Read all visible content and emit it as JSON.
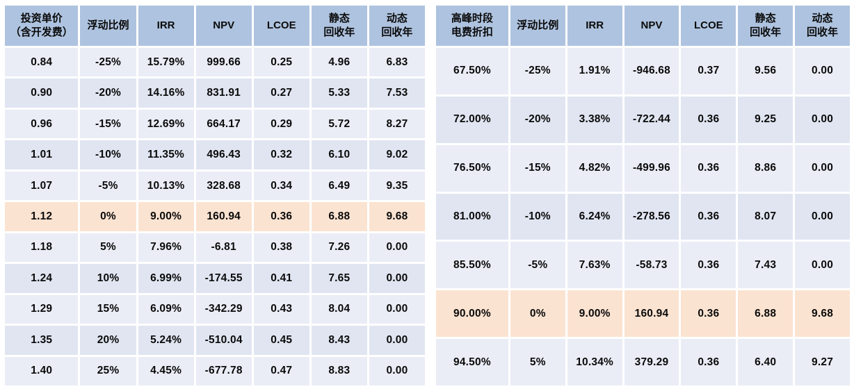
{
  "colors": {
    "header_bg": "#aec3df",
    "row_light": "#eaedf6",
    "row_dark": "#e0e5f1",
    "row_highlight": "#fbe3d1",
    "text": "#0a0a0a",
    "page_bg": "#ffffff"
  },
  "tables": [
    {
      "name": "investment-unit-price-sensitivity-table",
      "headers": [
        "投资单价\n（含开发费）",
        "浮动比例",
        "IRR",
        "NPV",
        "LCOE",
        "静态\n回收年",
        "动态\n回收年"
      ],
      "highlight_row": 5,
      "rows": [
        [
          "0.84",
          "-25%",
          "15.79%",
          "999.66",
          "0.25",
          "4.96",
          "6.83"
        ],
        [
          "0.90",
          "-20%",
          "14.16%",
          "831.91",
          "0.27",
          "5.33",
          "7.53"
        ],
        [
          "0.96",
          "-15%",
          "12.69%",
          "664.17",
          "0.29",
          "5.72",
          "8.27"
        ],
        [
          "1.01",
          "-10%",
          "11.35%",
          "496.43",
          "0.32",
          "6.10",
          "9.02"
        ],
        [
          "1.07",
          "-5%",
          "10.13%",
          "328.68",
          "0.34",
          "6.49",
          "9.35"
        ],
        [
          "1.12",
          "0%",
          "9.00%",
          "160.94",
          "0.36",
          "6.88",
          "9.68"
        ],
        [
          "1.18",
          "5%",
          "7.96%",
          "-6.81",
          "0.38",
          "7.26",
          "0.00"
        ],
        [
          "1.24",
          "10%",
          "6.99%",
          "-174.55",
          "0.41",
          "7.65",
          "0.00"
        ],
        [
          "1.29",
          "15%",
          "6.09%",
          "-342.29",
          "0.43",
          "8.04",
          "0.00"
        ],
        [
          "1.35",
          "20%",
          "5.24%",
          "-510.04",
          "0.45",
          "8.43",
          "0.00"
        ],
        [
          "1.40",
          "25%",
          "4.45%",
          "-677.78",
          "0.47",
          "8.83",
          "0.00"
        ]
      ]
    },
    {
      "name": "peak-period-tariff-discount-sensitivity-table",
      "headers": [
        "高峰时段\n电费折扣",
        "浮动比例",
        "IRR",
        "NPV",
        "LCOE",
        "静态\n回收年",
        "动态\n回收年"
      ],
      "highlight_row": 5,
      "rows": [
        [
          "67.50%",
          "-25%",
          "1.91%",
          "-946.68",
          "0.37",
          "9.56",
          "0.00"
        ],
        [
          "72.00%",
          "-20%",
          "3.38%",
          "-722.44",
          "0.36",
          "9.25",
          "0.00"
        ],
        [
          "76.50%",
          "-15%",
          "4.82%",
          "-499.96",
          "0.36",
          "8.86",
          "0.00"
        ],
        [
          "81.00%",
          "-10%",
          "6.24%",
          "-278.56",
          "0.36",
          "8.07",
          "0.00"
        ],
        [
          "85.50%",
          "-5%",
          "7.63%",
          "-58.73",
          "0.36",
          "7.43",
          "0.00"
        ],
        [
          "90.00%",
          "0%",
          "9.00%",
          "160.94",
          "0.36",
          "6.88",
          "9.68"
        ],
        [
          "94.50%",
          "5%",
          "10.34%",
          "379.29",
          "0.36",
          "6.40",
          "9.27"
        ]
      ]
    }
  ]
}
